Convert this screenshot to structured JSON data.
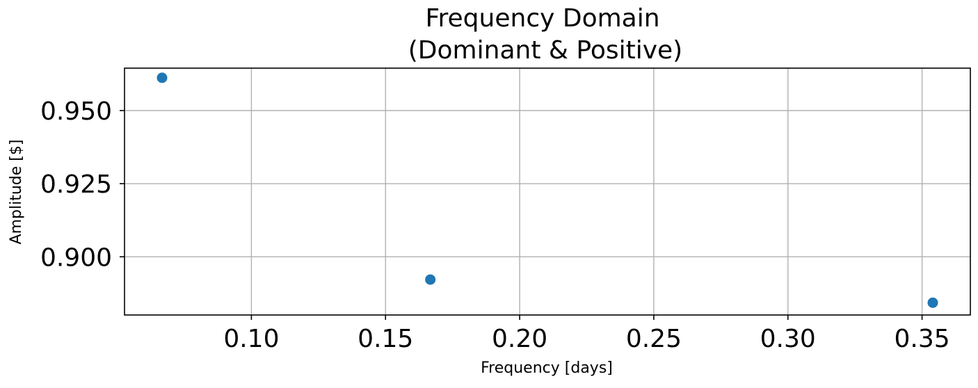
{
  "chart_data": {
    "type": "scatter",
    "title": [
      "Frequency Domain",
      "(Dominant & Positive)"
    ],
    "xlabel": "Frequency [days]",
    "ylabel": "Amplitude [$]",
    "points": [
      {
        "x": 0.0667,
        "y": 0.9612
      },
      {
        "x": 0.1667,
        "y": 0.8922
      },
      {
        "x": 0.354,
        "y": 0.8843
      }
    ],
    "xlim": [
      0.0527,
      0.368
    ],
    "ylim": [
      0.8801,
      0.9645
    ],
    "xticks": [
      0.1,
      0.15,
      0.2,
      0.25,
      0.3,
      0.35
    ],
    "xtick_labels": [
      "0.10",
      "0.15",
      "0.20",
      "0.25",
      "0.30",
      "0.35"
    ],
    "yticks": [
      0.95,
      0.925,
      0.9
    ],
    "ytick_labels": [
      "0.950",
      "0.925",
      "0.900"
    ],
    "grid": true,
    "colors": {
      "marker": "#1f77b4"
    }
  }
}
